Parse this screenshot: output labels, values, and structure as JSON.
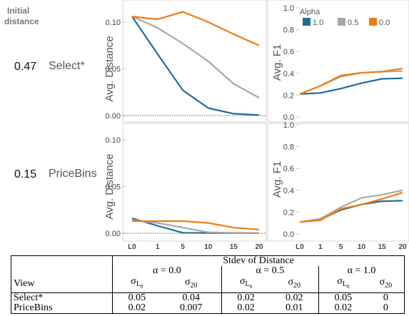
{
  "header": {
    "line1": "Initial",
    "line2": "distance"
  },
  "rows": [
    {
      "distance": "0.47",
      "view": "Select*"
    },
    {
      "distance": "0.15",
      "view": "PriceBins"
    }
  ],
  "colors": {
    "1.0": "#1f6d9c",
    "0.5": "#a8a8a8",
    "0.0": "#f27b0f"
  },
  "chart_data": [
    {
      "id": "select_distance",
      "type": "line",
      "ylabel": "Avg. Distance",
      "ylim": [
        0,
        0.11
      ],
      "yticks": [
        "0.00",
        "0.05",
        "0.10"
      ],
      "categories": [
        "L0",
        "1",
        "5",
        "10",
        "15",
        "20"
      ],
      "x_tick_labels_shown": false,
      "reference_line": 0,
      "series": [
        {
          "name": "1.0",
          "values": [
            0.106,
            0.066,
            0.027,
            0.008,
            0.002,
            0.0005
          ]
        },
        {
          "name": "0.5",
          "values": [
            0.106,
            0.094,
            0.077,
            0.058,
            0.034,
            0.019
          ]
        },
        {
          "name": "0.0",
          "values": [
            0.106,
            0.103,
            0.111,
            0.1,
            0.087,
            0.075
          ]
        }
      ]
    },
    {
      "id": "select_f1",
      "type": "line",
      "ylabel": "Avg. F1",
      "ylim": [
        0,
        1.0
      ],
      "yticks": [
        "0.0",
        "0.2",
        "0.4",
        "0.6",
        "0.8",
        "1.0"
      ],
      "categories": [
        "L0",
        "1",
        "5",
        "10",
        "15",
        "20"
      ],
      "x_tick_labels_shown": false,
      "legend": {
        "title": "Alpha",
        "placement": "top",
        "entries": [
          "1.0",
          "0.5",
          "0.0"
        ]
      },
      "series": [
        {
          "name": "1.0",
          "values": [
            0.21,
            0.22,
            0.26,
            0.31,
            0.35,
            0.355
          ]
        },
        {
          "name": "0.5",
          "values": [
            0.21,
            0.285,
            0.37,
            0.405,
            0.415,
            0.42
          ]
        },
        {
          "name": "0.0",
          "values": [
            0.21,
            0.285,
            0.38,
            0.405,
            0.415,
            0.445
          ]
        }
      ]
    },
    {
      "id": "pricebins_distance",
      "type": "line",
      "ylabel": "Avg. Distance",
      "ylim": [
        0,
        0.11
      ],
      "yticks": [
        "0.00",
        "0.05",
        "0.10"
      ],
      "categories": [
        "L0",
        "1",
        "5",
        "10",
        "15",
        "20"
      ],
      "x_tick_labels_shown": true,
      "reference_line": 0,
      "series": [
        {
          "name": "1.0",
          "values": [
            0.016,
            0.008,
            0.0005,
            0.0003,
            0.0002,
            0.0001
          ]
        },
        {
          "name": "0.5",
          "values": [
            0.014,
            0.011,
            0.006,
            0.001,
            0.0005,
            0.0003
          ]
        },
        {
          "name": "0.0",
          "values": [
            0.013,
            0.013,
            0.013,
            0.011,
            0.006,
            0.004
          ]
        }
      ]
    },
    {
      "id": "pricebins_f1",
      "type": "line",
      "ylabel": "Avg. F1",
      "ylim": [
        0,
        1.0
      ],
      "yticks": [
        "0.0",
        "0.2",
        "0.4",
        "0.6",
        "0.8",
        "1.0"
      ],
      "categories": [
        "L0",
        "1",
        "5",
        "10",
        "15",
        "20"
      ],
      "x_tick_labels_shown": true,
      "series": [
        {
          "name": "1.0",
          "values": [
            0.11,
            0.13,
            0.22,
            0.27,
            0.3,
            0.305
          ]
        },
        {
          "name": "0.5",
          "values": [
            0.11,
            0.14,
            0.245,
            0.33,
            0.36,
            0.4
          ]
        },
        {
          "name": "0.0",
          "values": [
            0.11,
            0.125,
            0.23,
            0.27,
            0.32,
            0.38
          ]
        }
      ]
    }
  ],
  "table": {
    "title": "Stdev of Distance",
    "view_header": "View",
    "alpha_groups": [
      {
        "prefix": "α = ",
        "value": "0.0"
      },
      {
        "prefix": "α = ",
        "value": "0.5"
      },
      {
        "prefix": "α = ",
        "value": "1.0"
      }
    ],
    "sigma": "σ",
    "sub_L": "L",
    "sub_L_index": "0",
    "sub_20": "20",
    "rows": [
      {
        "view": "Select*",
        "values": [
          "0.05",
          "0.04",
          "0.02",
          "0.02",
          "0.05",
          "0"
        ]
      },
      {
        "view": "PriceBins",
        "values": [
          "0.02",
          "0.007",
          "0.02",
          "0.01",
          "0.02",
          "0"
        ]
      }
    ]
  }
}
